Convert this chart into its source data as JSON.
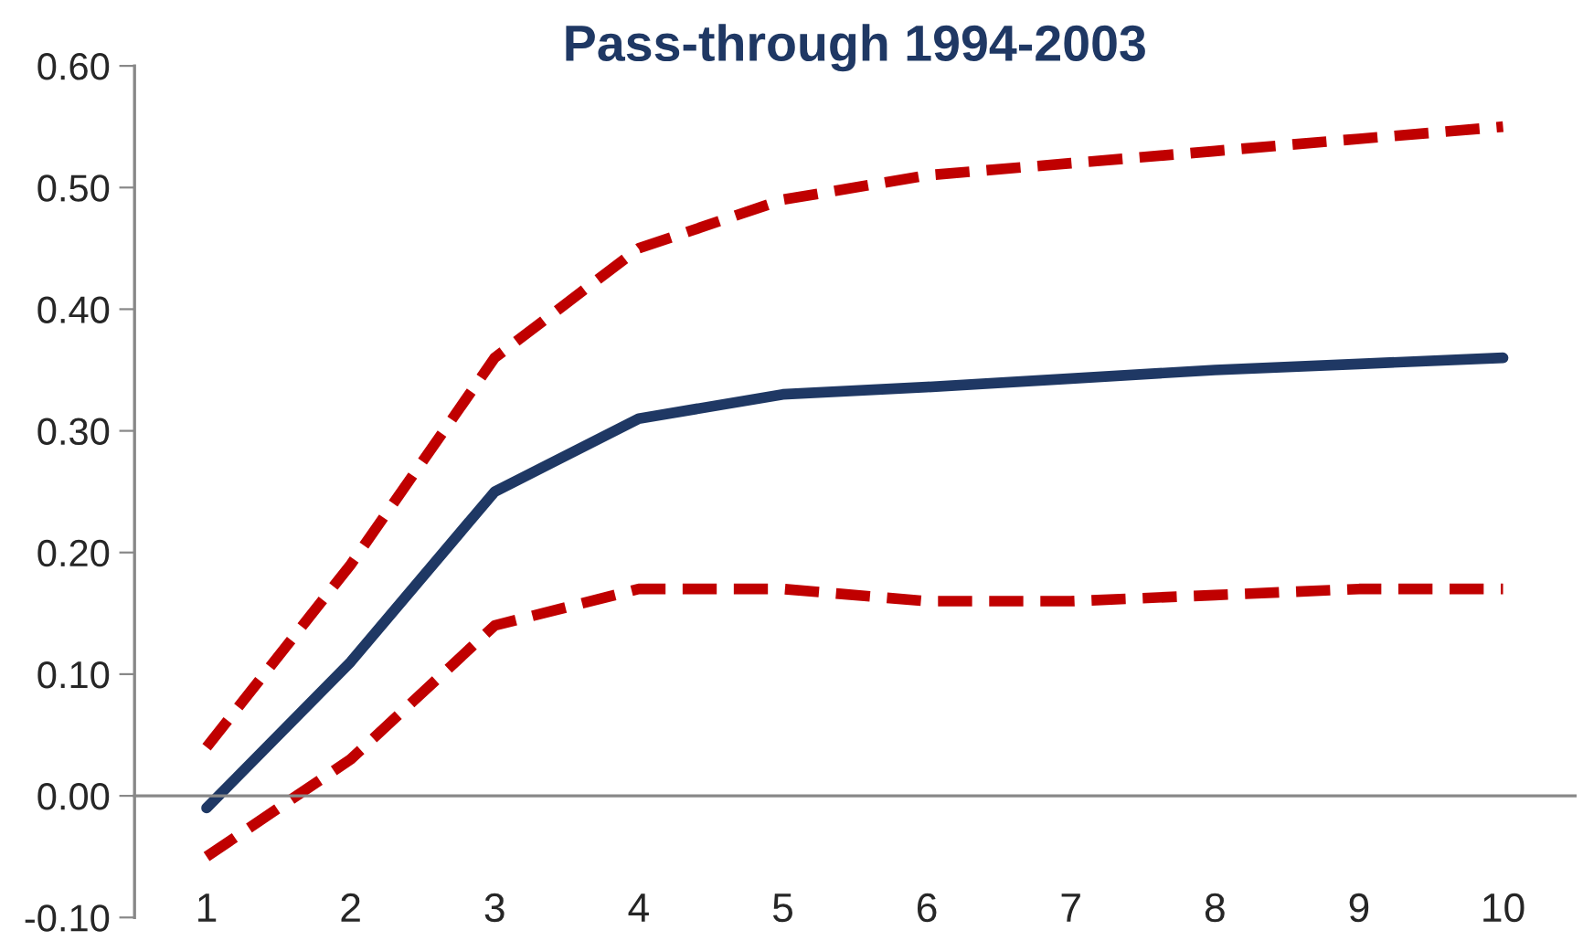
{
  "chart_data": {
    "type": "line",
    "title": "Pass-through 1994-2003",
    "categories": [
      "1",
      "2",
      "3",
      "4",
      "5",
      "6",
      "7",
      "8",
      "9",
      "10"
    ],
    "series": [
      {
        "color": "#c00000",
        "line_style": "dashed",
        "values": [
          0.04,
          0.19,
          0.36,
          0.45,
          0.49,
          0.51,
          0.52,
          0.53,
          0.54,
          0.55
        ]
      },
      {
        "color": "#1f3864",
        "line_style": "solid",
        "values": [
          -0.01,
          0.11,
          0.25,
          0.31,
          0.33,
          0.336,
          0.343,
          0.35,
          0.355,
          0.36
        ]
      },
      {
        "color": "#c00000",
        "line_style": "dashed",
        "values": [
          -0.05,
          0.03,
          0.14,
          0.17,
          0.17,
          0.16,
          0.16,
          0.165,
          0.17,
          0.17
        ]
      }
    ],
    "ylim": [
      -0.1,
      0.6
    ],
    "yticks": [
      {
        "value": -0.1,
        "label": "-0.10"
      },
      {
        "value": 0,
        "label": "0.00"
      },
      {
        "value": 0.1,
        "label": "0.10"
      },
      {
        "value": 0.2,
        "label": "0.20"
      },
      {
        "value": 0.3,
        "label": "0.30"
      },
      {
        "value": 0.4,
        "label": "0.40"
      },
      {
        "value": 0.5,
        "label": "0.50"
      },
      {
        "value": 0.6,
        "label": "0.60"
      }
    ],
    "grid": false,
    "legend": false
  }
}
